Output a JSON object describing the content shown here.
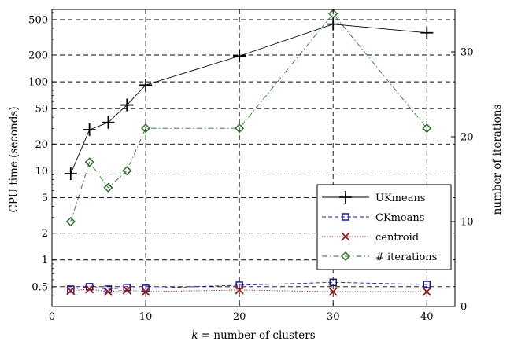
{
  "chart_data": {
    "type": "line",
    "xlabel_var": "k",
    "xlabel_rest": "= number of clusters",
    "ylabel": "CPU time (seconds)",
    "y2label": "number of iterations",
    "xlim": [
      0,
      43
    ],
    "ylim": [
      0.3,
      650
    ],
    "yscale": "log",
    "y2lim": [
      0,
      35
    ],
    "x_ticks": [
      0,
      10,
      20,
      30,
      40
    ],
    "y_ticks": [
      0.5,
      1,
      2,
      5,
      10,
      20,
      50,
      100,
      200,
      500
    ],
    "y_tick_labels": [
      "0.5",
      "1",
      "2",
      "5",
      "10",
      "20",
      "50",
      "100",
      "200",
      "500"
    ],
    "y2_ticks": [
      0,
      10,
      20,
      30
    ],
    "grid": true,
    "legend_position": "right-middle",
    "series": [
      {
        "name": "UKmeans",
        "axis": "left",
        "color": "#000000",
        "line": "solid",
        "marker": "plus",
        "x": [
          2,
          4,
          6,
          8,
          10,
          20,
          30,
          40
        ],
        "y": [
          9.3,
          29,
          35,
          55,
          92,
          195,
          445,
          355
        ]
      },
      {
        "name": "CKmeans",
        "axis": "left",
        "color": "#1a1a9e",
        "line": "dashed",
        "marker": "square",
        "x": [
          2,
          4,
          6,
          8,
          10,
          20,
          30,
          40
        ],
        "y": [
          0.47,
          0.5,
          0.47,
          0.49,
          0.48,
          0.52,
          0.56,
          0.53
        ]
      },
      {
        "name": "centroid",
        "axis": "left",
        "color": "#8b1a1a",
        "line": "dotted",
        "marker": "x",
        "x": [
          2,
          4,
          6,
          8,
          10,
          20,
          30,
          40
        ],
        "y": [
          0.45,
          0.47,
          0.44,
          0.46,
          0.44,
          0.46,
          0.44,
          0.44
        ]
      },
      {
        "name": "# iterations",
        "axis": "right",
        "color": "#2e6b2e",
        "line": "dashdot",
        "marker": "diamond",
        "x": [
          2,
          4,
          6,
          8,
          10,
          20,
          30,
          40
        ],
        "y": [
          10,
          17,
          14,
          16,
          21,
          21,
          34.5,
          21
        ]
      }
    ]
  }
}
